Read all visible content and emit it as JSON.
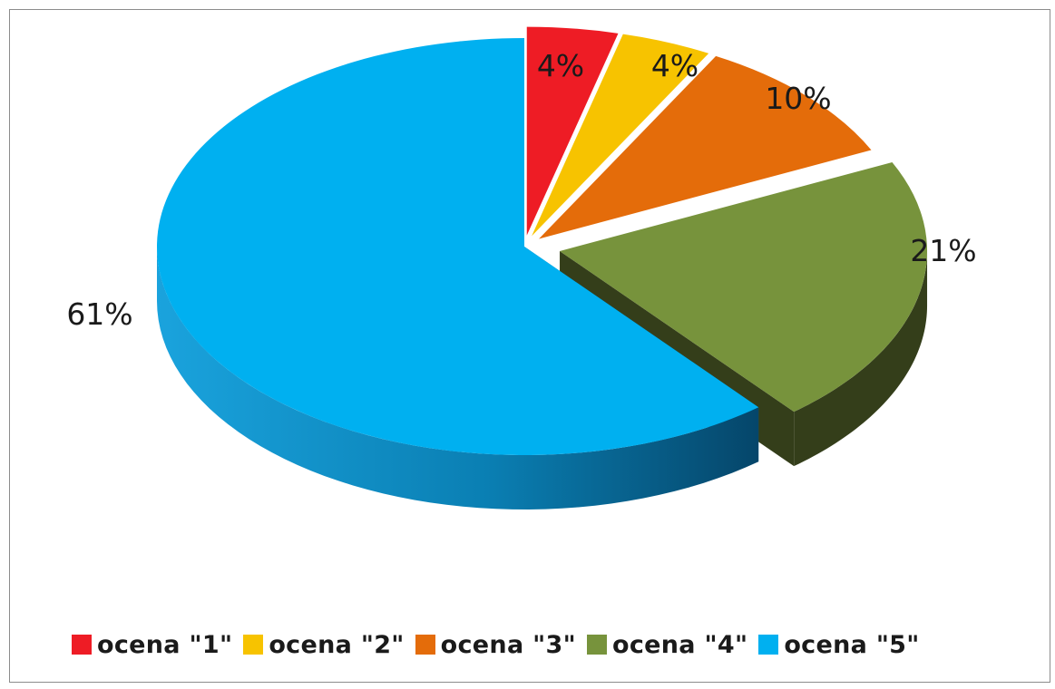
{
  "chart_data": {
    "type": "pie",
    "categories": [
      "ocena \"1\"",
      "ocena \"2\"",
      "ocena \"3\"",
      "ocena \"4\"",
      "ocena \"5\""
    ],
    "values": [
      4,
      4,
      10,
      21,
      61
    ],
    "data_labels": [
      "4%",
      "4%",
      "10%",
      "21%",
      "61%"
    ],
    "colors": [
      "#ee1c25",
      "#f7c300",
      "#e46c0a",
      "#77933c",
      "#00b0f0"
    ],
    "side_colors": [
      "#8f1015",
      "#a07c00",
      "#8a4106",
      "#343e1a",
      "#0a7fb3"
    ],
    "legend_position": "bottom",
    "three_d": true,
    "exploded": true
  }
}
